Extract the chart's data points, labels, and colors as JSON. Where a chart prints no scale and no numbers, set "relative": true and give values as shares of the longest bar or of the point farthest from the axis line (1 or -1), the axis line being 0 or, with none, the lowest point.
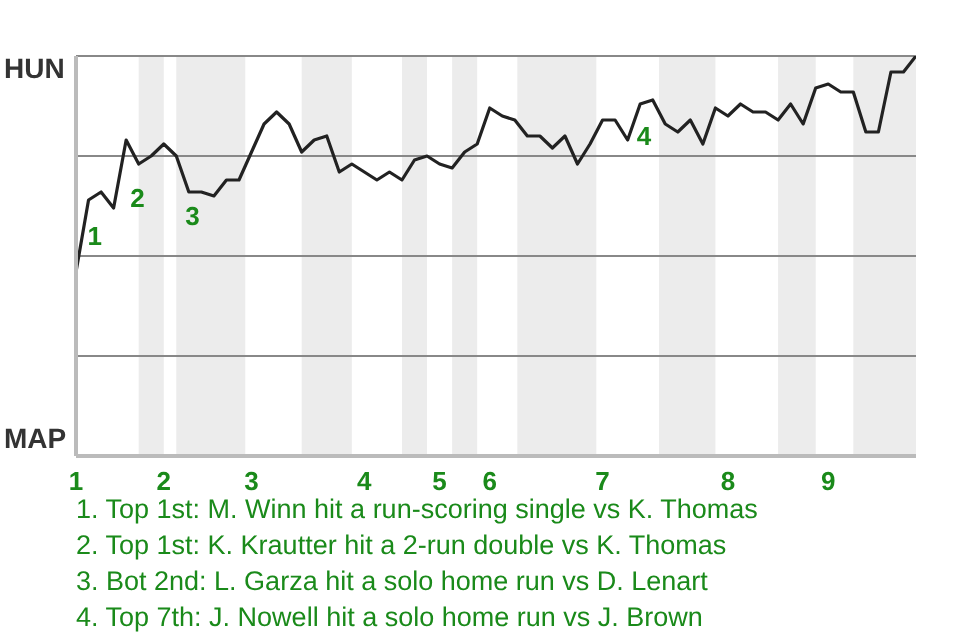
{
  "chart_data": {
    "type": "line",
    "relative": true,
    "categories": [
      "1",
      null,
      null,
      null,
      null,
      null,
      null,
      "2",
      null,
      null,
      null,
      null,
      null,
      null,
      "3",
      null,
      null,
      null,
      null,
      null,
      null,
      null,
      null,
      "4",
      null,
      null,
      null,
      null,
      null,
      "5",
      null,
      null,
      null,
      "6",
      null,
      null,
      null,
      null,
      null,
      null,
      null,
      null,
      "7",
      null,
      null,
      null,
      null,
      null,
      null,
      null,
      null,
      null,
      "8",
      null,
      null,
      null,
      null,
      null,
      null,
      null,
      "9",
      null,
      null,
      null,
      null,
      null,
      null,
      null
    ],
    "series": [
      {
        "color": "#222222",
        "values": [
          0.46,
          0.64,
          0.66,
          0.62,
          0.79,
          0.73,
          0.75,
          0.78,
          0.75,
          0.66,
          0.66,
          0.65,
          0.69,
          0.69,
          0.76,
          0.83,
          0.86,
          0.83,
          0.76,
          0.79,
          0.8,
          0.71,
          0.73,
          0.71,
          0.69,
          0.71,
          0.69,
          0.74,
          0.75,
          0.73,
          0.72,
          0.76,
          0.78,
          0.87,
          0.85,
          0.84,
          0.8,
          0.8,
          0.77,
          0.8,
          0.73,
          0.78,
          0.84,
          0.84,
          0.79,
          0.88,
          0.89,
          0.83,
          0.81,
          0.84,
          0.78,
          0.87,
          0.85,
          0.88,
          0.86,
          0.86,
          0.84,
          0.88,
          0.83,
          0.92,
          0.93,
          0.91,
          0.91,
          0.81,
          0.81,
          0.96,
          0.96,
          1
        ]
      }
    ],
    "annotations": [
      "HUN",
      "MAP",
      "1",
      "2",
      "3",
      "4",
      "1. Top 1st: M. Winn hit a run-scoring single vs K. Thomas",
      "2. Top 1st: K. Krautter hit a 2-run double vs K. Thomas",
      "3. Bot 2nd: L. Garza hit a solo home run vs D. Lenart",
      "4. Top 7th: J. Nowell hit a solo home run vs J. Brown"
    ]
  }
}
